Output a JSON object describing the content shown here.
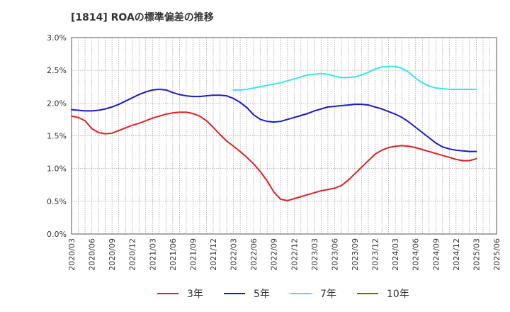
{
  "chart_data": {
    "type": "line",
    "title": "[1814]  ROAの標準偏差の推移",
    "xlabel": "",
    "ylabel": "",
    "ylim": [
      0.0,
      3.0
    ],
    "y_ticks": [
      "0.0%",
      "0.5%",
      "1.0%",
      "1.5%",
      "2.0%",
      "2.5%",
      "3.0%"
    ],
    "x_ticks": [
      "2020/03",
      "2020/06",
      "2020/09",
      "2020/12",
      "2021/03",
      "2021/06",
      "2021/09",
      "2021/12",
      "2022/03",
      "2022/06",
      "2022/09",
      "2022/12",
      "2023/03",
      "2023/06",
      "2023/09",
      "2023/12",
      "2024/03",
      "2024/06",
      "2024/09",
      "2024/12",
      "2025/03",
      "2025/06"
    ],
    "grid": true,
    "legend_position": "bottom",
    "series": [
      {
        "name": "3年",
        "color": "#e02020",
        "x": [
          "2020/03",
          "2020/04",
          "2020/05",
          "2020/06",
          "2020/07",
          "2020/08",
          "2020/09",
          "2020/10",
          "2020/11",
          "2020/12",
          "2021/01",
          "2021/02",
          "2021/03",
          "2021/04",
          "2021/05",
          "2021/06",
          "2021/07",
          "2021/08",
          "2021/09",
          "2021/10",
          "2021/11",
          "2021/12",
          "2022/01",
          "2022/02",
          "2022/03",
          "2022/04",
          "2022/05",
          "2022/06",
          "2022/07",
          "2022/08",
          "2022/09",
          "2022/10",
          "2022/11",
          "2022/12",
          "2023/01",
          "2023/02",
          "2023/03",
          "2023/04",
          "2023/05",
          "2023/06",
          "2023/07",
          "2023/08",
          "2023/09",
          "2023/10",
          "2023/11",
          "2023/12",
          "2024/01",
          "2024/02",
          "2024/03",
          "2024/04",
          "2024/05",
          "2024/06",
          "2024/07",
          "2024/08",
          "2024/09",
          "2024/10",
          "2024/11",
          "2024/12",
          "2025/01",
          "2025/02",
          "2025/03"
        ],
        "values": [
          1.8,
          1.78,
          1.73,
          1.61,
          1.55,
          1.53,
          1.54,
          1.58,
          1.62,
          1.66,
          1.69,
          1.73,
          1.77,
          1.8,
          1.83,
          1.85,
          1.86,
          1.86,
          1.84,
          1.8,
          1.73,
          1.63,
          1.52,
          1.42,
          1.34,
          1.26,
          1.17,
          1.07,
          0.95,
          0.81,
          0.64,
          0.53,
          0.51,
          0.54,
          0.57,
          0.6,
          0.63,
          0.66,
          0.68,
          0.7,
          0.74,
          0.82,
          0.92,
          1.02,
          1.12,
          1.22,
          1.28,
          1.32,
          1.34,
          1.35,
          1.34,
          1.32,
          1.29,
          1.26,
          1.23,
          1.2,
          1.17,
          1.14,
          1.12,
          1.12,
          1.15
        ]
      },
      {
        "name": "5年",
        "color": "#1a1acc",
        "x": [
          "2020/03",
          "2020/04",
          "2020/05",
          "2020/06",
          "2020/07",
          "2020/08",
          "2020/09",
          "2020/10",
          "2020/11",
          "2020/12",
          "2021/01",
          "2021/02",
          "2021/03",
          "2021/04",
          "2021/05",
          "2021/06",
          "2021/07",
          "2021/08",
          "2021/09",
          "2021/10",
          "2021/11",
          "2021/12",
          "2022/01",
          "2022/02",
          "2022/03",
          "2022/04",
          "2022/05",
          "2022/06",
          "2022/07",
          "2022/08",
          "2022/09",
          "2022/10",
          "2022/11",
          "2022/12",
          "2023/01",
          "2023/02",
          "2023/03",
          "2023/04",
          "2023/05",
          "2023/06",
          "2023/07",
          "2023/08",
          "2023/09",
          "2023/10",
          "2023/11",
          "2023/12",
          "2024/01",
          "2024/02",
          "2024/03",
          "2024/04",
          "2024/05",
          "2024/06",
          "2024/07",
          "2024/08",
          "2024/09",
          "2024/10",
          "2024/11",
          "2024/12",
          "2025/01",
          "2025/02",
          "2025/03"
        ],
        "values": [
          1.9,
          1.89,
          1.88,
          1.88,
          1.89,
          1.91,
          1.94,
          1.98,
          2.03,
          2.08,
          2.13,
          2.17,
          2.2,
          2.21,
          2.2,
          2.16,
          2.13,
          2.11,
          2.1,
          2.1,
          2.11,
          2.12,
          2.12,
          2.11,
          2.07,
          2.01,
          1.93,
          1.82,
          1.75,
          1.72,
          1.71,
          1.72,
          1.75,
          1.78,
          1.81,
          1.84,
          1.88,
          1.91,
          1.94,
          1.95,
          1.96,
          1.97,
          1.98,
          1.98,
          1.97,
          1.94,
          1.91,
          1.87,
          1.83,
          1.78,
          1.71,
          1.63,
          1.55,
          1.47,
          1.39,
          1.33,
          1.3,
          1.28,
          1.27,
          1.26,
          1.26
        ]
      },
      {
        "name": "7年",
        "color": "#33e6ee",
        "x": [
          "2022/03",
          "2022/04",
          "2022/05",
          "2022/06",
          "2022/07",
          "2022/08",
          "2022/09",
          "2022/10",
          "2022/11",
          "2022/12",
          "2023/01",
          "2023/02",
          "2023/03",
          "2023/04",
          "2023/05",
          "2023/06",
          "2023/07",
          "2023/08",
          "2023/09",
          "2023/10",
          "2023/11",
          "2023/12",
          "2024/01",
          "2024/02",
          "2024/03",
          "2024/04",
          "2024/05",
          "2024/06",
          "2024/07",
          "2024/08",
          "2024/09",
          "2024/10",
          "2024/11",
          "2024/12",
          "2025/01",
          "2025/02",
          "2025/03"
        ],
        "values": [
          2.2,
          2.2,
          2.21,
          2.23,
          2.25,
          2.27,
          2.29,
          2.31,
          2.34,
          2.37,
          2.4,
          2.43,
          2.44,
          2.45,
          2.44,
          2.41,
          2.39,
          2.39,
          2.4,
          2.43,
          2.47,
          2.52,
          2.55,
          2.56,
          2.56,
          2.53,
          2.47,
          2.38,
          2.31,
          2.26,
          2.23,
          2.22,
          2.21,
          2.21,
          2.21,
          2.21,
          2.21
        ]
      },
      {
        "name": "10年",
        "color": "#2a8a2a",
        "x": [],
        "values": []
      }
    ]
  }
}
